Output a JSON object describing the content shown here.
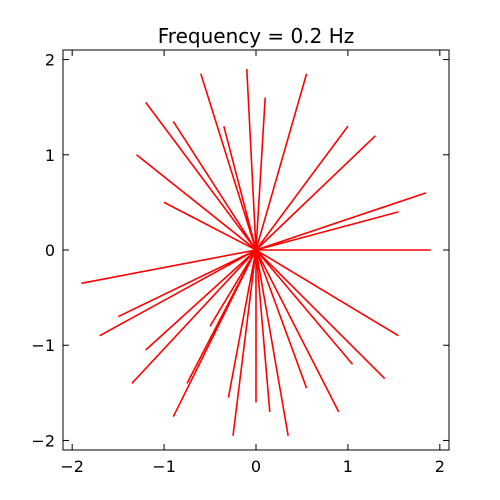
{
  "chart_data": {
    "type": "line",
    "title": "Frequency = 0.2 Hz",
    "xlabel": "",
    "ylabel": "",
    "xlim": [
      -2.1,
      2.1
    ],
    "ylim": [
      -2.1,
      2.1
    ],
    "xticks": [
      -2,
      -1,
      0,
      1,
      2
    ],
    "yticks": [
      -2,
      -1,
      0,
      1,
      2
    ],
    "xtick_labels": [
      "−2",
      "−1",
      "0",
      "1",
      "2"
    ],
    "ytick_labels": [
      "−2",
      "−1",
      "0",
      "1",
      "2"
    ],
    "grid": false,
    "line_color": "#ff0000",
    "series": [
      {
        "x": [
          0.0,
          -1.9,
          0.0,
          -1.7,
          0.0,
          -1.5,
          0.0,
          -1.35,
          0.0,
          -1.2,
          0.0,
          -0.9,
          0.0,
          -0.75,
          0.0,
          -0.5,
          0.0,
          -0.3,
          0.0,
          -0.25,
          0.0,
          0.0,
          0.0,
          0.15,
          0.0,
          0.35,
          0.0,
          0.55,
          0.0,
          0.9,
          0.0,
          1.05,
          0.0,
          1.4,
          0.0,
          1.55,
          0.0,
          1.9,
          0.0,
          1.55,
          0.0,
          1.85,
          0.0,
          1.3,
          0.0,
          1.0,
          0.0,
          0.55,
          0.0,
          0.1,
          0.0,
          -0.1,
          0.0,
          -0.35,
          0.0,
          -0.6,
          0.0,
          -0.9,
          0.0,
          -1.2,
          0.0,
          -1.3,
          0.0,
          -1.0
        ],
        "y": [
          0.0,
          -0.35,
          0.0,
          -0.9,
          0.0,
          -0.7,
          0.0,
          -1.4,
          0.0,
          -1.05,
          0.0,
          -1.75,
          0.0,
          -1.4,
          0.0,
          -0.8,
          0.0,
          -1.55,
          0.0,
          -1.95,
          0.0,
          -1.6,
          0.0,
          -1.7,
          0.0,
          -1.95,
          0.0,
          -1.45,
          0.0,
          -1.7,
          0.0,
          -1.2,
          0.0,
          -1.35,
          0.0,
          -0.9,
          0.0,
          0.0,
          0.0,
          0.4,
          0.0,
          0.6,
          0.0,
          1.2,
          0.0,
          1.3,
          0.0,
          1.85,
          0.0,
          1.6,
          0.0,
          1.9,
          0.0,
          1.3,
          0.0,
          1.85,
          0.0,
          1.35,
          0.0,
          1.55,
          0.0,
          1.0,
          0.0,
          0.5
        ]
      }
    ]
  }
}
